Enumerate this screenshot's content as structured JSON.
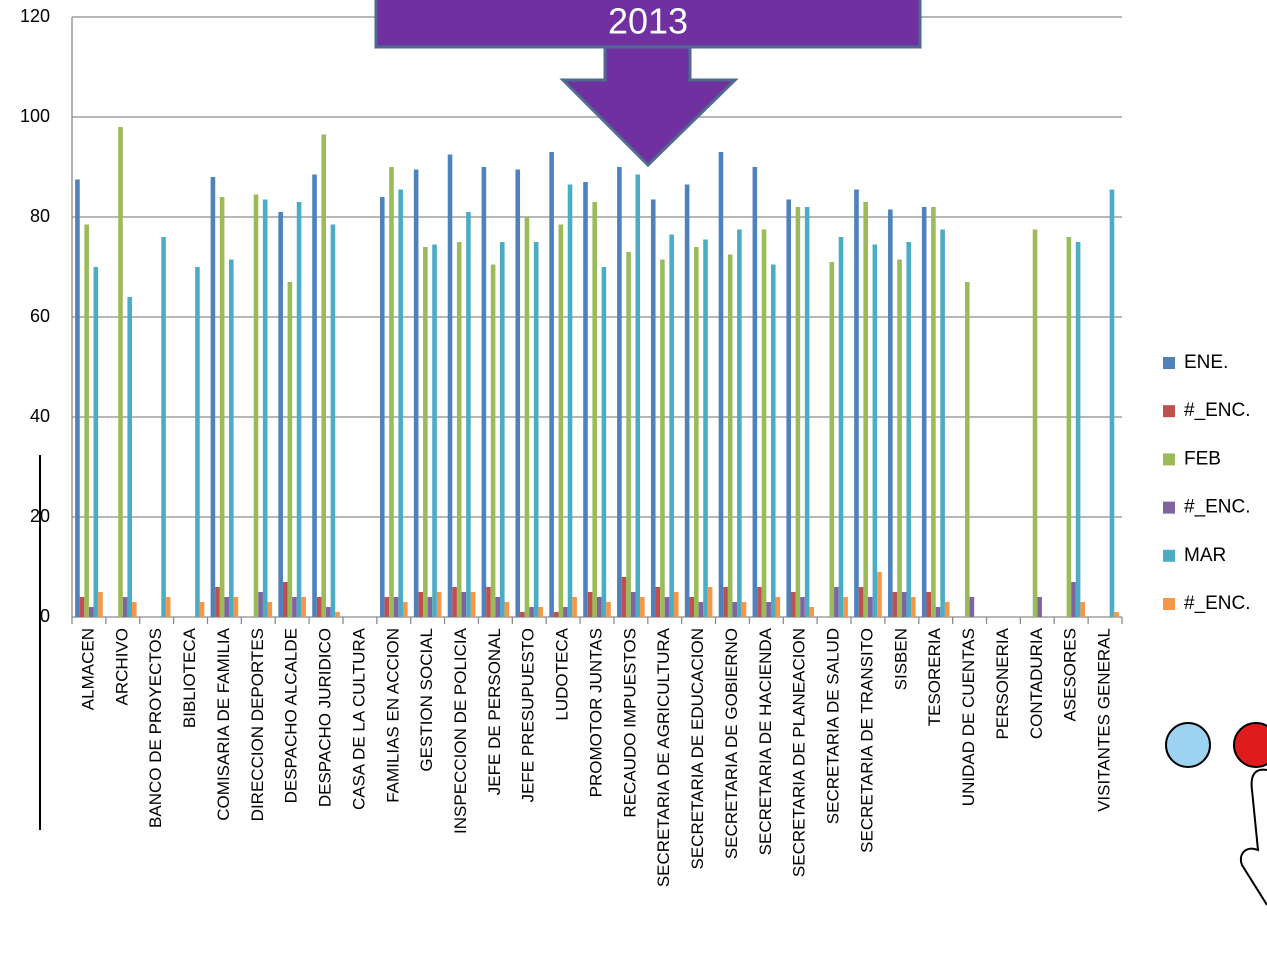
{
  "chart_data": {
    "type": "bar",
    "annotation": "2013",
    "categories": [
      "ALMACEN",
      "ARCHIVO",
      "BANCO DE PROYECTOS",
      "BIBLIOTECA",
      "COMISARIA DE FAMILIA",
      "DIRECCION DEPORTES",
      "DESPACHO ALCALDE",
      "DESPACHO JURIDICO",
      "CASA DE LA CULTURA",
      "FAMILIAS EN ACCION",
      "GESTION SOCIAL",
      "INSPECCION DE POLICIA",
      "JEFE DE PERSONAL",
      "JEFE PRESUPUESTO",
      "LUDOTECA",
      "PROMOTOR JUNTAS",
      "RECAUDO IMPUESTOS",
      "SECRETARIA DE AGRICULTURA",
      "SECRETARIA DE EDUCACION",
      "SECRETARIA DE GOBIERNO",
      "SECRETARIA DE HACIENDA",
      "SECRETARIA DE PLANEACION",
      "SECRETARIA DE SALUD",
      "SECRETARIA DE TRANSITO",
      "SISBEN",
      "TESORERIA",
      "UNIDAD DE CUENTAS",
      "PERSONERIA",
      "CONTADURIA",
      "ASESORES",
      "VISITANTES GENERAL"
    ],
    "series": [
      {
        "name": "ENE.",
        "color": "#4f81bd",
        "values": [
          87.5,
          null,
          null,
          null,
          88,
          null,
          81,
          88.5,
          null,
          84,
          89.5,
          92.5,
          90,
          89.5,
          93,
          87,
          90,
          83.5,
          86.5,
          93,
          90,
          83.5,
          null,
          85.5,
          81.5,
          82,
          null,
          null,
          null,
          null,
          null
        ]
      },
      {
        "name": "#_ENC.",
        "color": "#c0504d",
        "values": [
          4,
          null,
          null,
          null,
          6,
          null,
          7,
          4,
          null,
          4,
          5,
          6,
          6,
          1,
          1,
          5,
          8,
          6,
          4,
          6,
          6,
          5,
          null,
          6,
          5,
          5,
          null,
          null,
          null,
          null,
          null
        ]
      },
      {
        "name": "FEB",
        "color": "#9bbb59",
        "values": [
          78.5,
          98,
          null,
          null,
          84,
          84.5,
          67,
          96.5,
          null,
          90,
          74,
          75,
          70.5,
          80,
          78.5,
          83,
          73,
          71.5,
          74,
          72.5,
          77.5,
          82,
          71,
          83,
          71.5,
          82,
          67,
          null,
          77.5,
          76,
          null
        ]
      },
      {
        "name": "#_ENC.",
        "color": "#8064a2",
        "values": [
          2,
          4,
          null,
          null,
          4,
          5,
          4,
          2,
          null,
          4,
          4,
          5,
          4,
          2,
          2,
          4,
          5,
          4,
          3,
          3,
          3,
          4,
          6,
          4,
          5,
          2,
          4,
          null,
          4,
          7,
          null
        ]
      },
      {
        "name": "MAR",
        "color": "#4bacc6",
        "values": [
          70,
          64,
          76,
          70,
          71.5,
          83.5,
          83,
          78.5,
          null,
          85.5,
          74.5,
          81,
          75,
          75,
          86.5,
          70,
          88.5,
          76.5,
          75.5,
          77.5,
          70.5,
          82,
          76,
          74.5,
          75,
          77.5,
          null,
          null,
          null,
          75,
          85.5
        ]
      },
      {
        "name": "#_ENC.",
        "color": "#f79646",
        "values": [
          5,
          3,
          4,
          3,
          4,
          3,
          4,
          1,
          null,
          3,
          5,
          5,
          3,
          2,
          4,
          3,
          4,
          5,
          6,
          3,
          4,
          2,
          4,
          9,
          4,
          3,
          null,
          null,
          null,
          3,
          1
        ]
      }
    ],
    "ylim": [
      0,
      120
    ],
    "yticks": [
      0,
      20,
      40,
      60,
      80,
      100,
      120
    ],
    "grid": true
  }
}
